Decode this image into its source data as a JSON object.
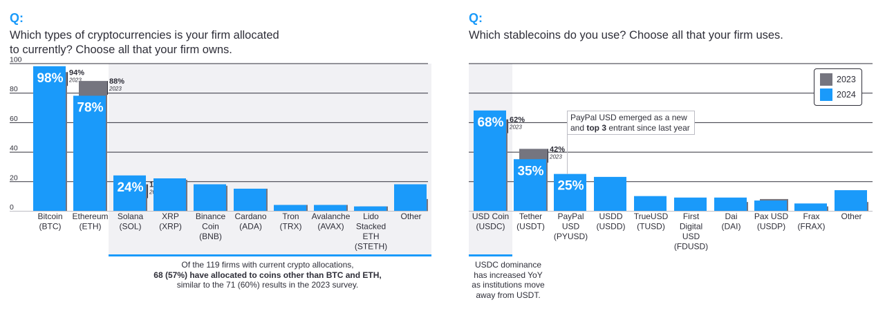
{
  "left_panel": {
    "q_label": "Q:",
    "question_line1": "Which types of cryptocurrencies is your firm allocated",
    "question_line2": "to currently? Choose all that your firm owns.",
    "note_line1": "Of the 119 firms with current crypto allocations,",
    "note_line2_bold": "68 (57%) have allocated to coins other than BTC and ETH,",
    "note_line3": "similar to the 71 (60%) results in the 2023 survey."
  },
  "right_panel": {
    "q_label": "Q:",
    "question_line1": "Which stablecoins do you use? Choose all that your firm uses.",
    "callout_line1": "PayPal USD emerged as a new",
    "callout_line2_pre": "and ",
    "callout_line2_bold": "top 3",
    "callout_line2_post": " entrant since last year",
    "note_lines": [
      "USDC dominance",
      "has increased YoY",
      "as institutions move",
      "away from USDT."
    ]
  },
  "legend": {
    "label_2023": "2023",
    "label_2024": "2024"
  },
  "colors": {
    "y2023": "#75757f",
    "y2024": "#1a9afa",
    "text": "#2e2e38",
    "highlight": "#f1f1f4",
    "accent": "#1a9afa"
  },
  "chart_data": [
    {
      "type": "bar",
      "ylim": [
        0,
        100
      ],
      "yticks": [
        "100",
        "80",
        "60",
        "40",
        "20",
        "0"
      ],
      "categories": [
        [
          "Bitcoin",
          "(BTC)"
        ],
        [
          "Ethereum",
          "(ETH)"
        ],
        [
          "Solana",
          "(SOL)"
        ],
        [
          "XRP",
          "(XRP)"
        ],
        [
          "Binance",
          "Coin",
          "(BNB)"
        ],
        [
          "Cardano",
          "(ADA)"
        ],
        [
          "Tron",
          "(TRX)"
        ],
        [
          "Avalanche",
          "(AVAX)"
        ],
        [
          "Lido",
          "Stacked",
          "ETH",
          "(STETH)"
        ],
        [
          "Other"
        ]
      ],
      "series": [
        {
          "name": "2023",
          "values": [
            94,
            88,
            18,
            21,
            17,
            15,
            4,
            4,
            3,
            8
          ]
        },
        {
          "name": "2024",
          "values": [
            98,
            78,
            24,
            22,
            18,
            15,
            4,
            4,
            3,
            18
          ]
        }
      ],
      "labels_2024": [
        "98%",
        "78%",
        "24%",
        "",
        "",
        "",
        "",
        "",
        "",
        ""
      ],
      "labels_2023": [
        "94%",
        "88%",
        "18%",
        "",
        "",
        "",
        "",
        "",
        "",
        ""
      ],
      "label_2023_year": "2023",
      "highlighted_categories": [
        2,
        3,
        4,
        5,
        6,
        7,
        8,
        9
      ]
    },
    {
      "type": "bar",
      "ylim": [
        0,
        100
      ],
      "categories": [
        [
          "USD Coin",
          "(USDC)"
        ],
        [
          "Tether",
          "(USDT)"
        ],
        [
          "PayPal",
          "USD",
          "(PYUSD)"
        ],
        [
          "USDD",
          "(USDD)"
        ],
        [
          "TrueUSD",
          "(TUSD)"
        ],
        [
          "First",
          "Digital",
          "USD",
          "(FDUSD)"
        ],
        [
          "Dai",
          "(DAI)"
        ],
        [
          "Pax USD",
          "(USDP)"
        ],
        [
          "Frax",
          "(FRAX)"
        ],
        [
          "Other"
        ]
      ],
      "series": [
        {
          "name": "2023",
          "values": [
            62,
            42,
            0,
            0,
            0,
            0,
            6,
            8,
            3,
            6
          ]
        },
        {
          "name": "2024",
          "values": [
            68,
            35,
            25,
            23,
            10,
            9,
            9,
            7,
            5,
            14
          ]
        }
      ],
      "labels_2024": [
        "68%",
        "35%",
        "25%",
        "",
        "",
        "",
        "",
        "",
        "",
        ""
      ],
      "labels_2023": [
        "62%",
        "42%",
        "",
        "",
        "",
        "",
        "",
        "",
        "",
        ""
      ],
      "label_2023_year": "2023",
      "highlighted_categories": [
        0
      ]
    }
  ]
}
